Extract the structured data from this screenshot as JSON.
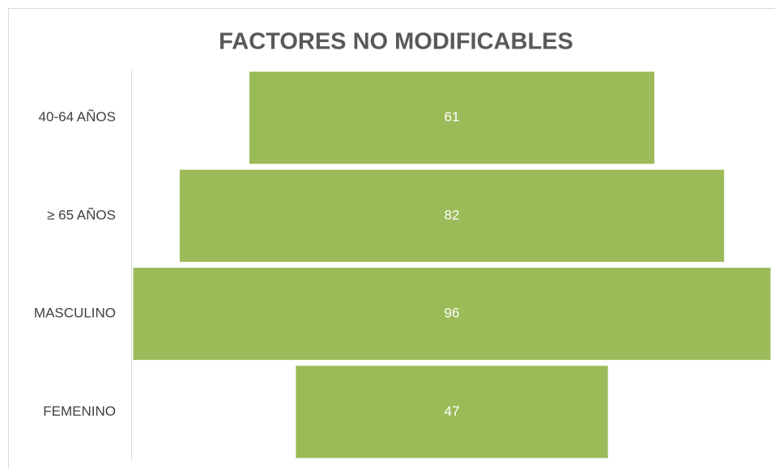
{
  "chart_data": {
    "type": "funnel",
    "title": "FACTORES NO MODIFICABLES",
    "categories": [
      "40-64 AÑOS",
      "≥ 65 AÑOS",
      "MASCULINO",
      "FEMENINO"
    ],
    "values": [
      61,
      82,
      96,
      47
    ],
    "color": "#9bbb59"
  }
}
